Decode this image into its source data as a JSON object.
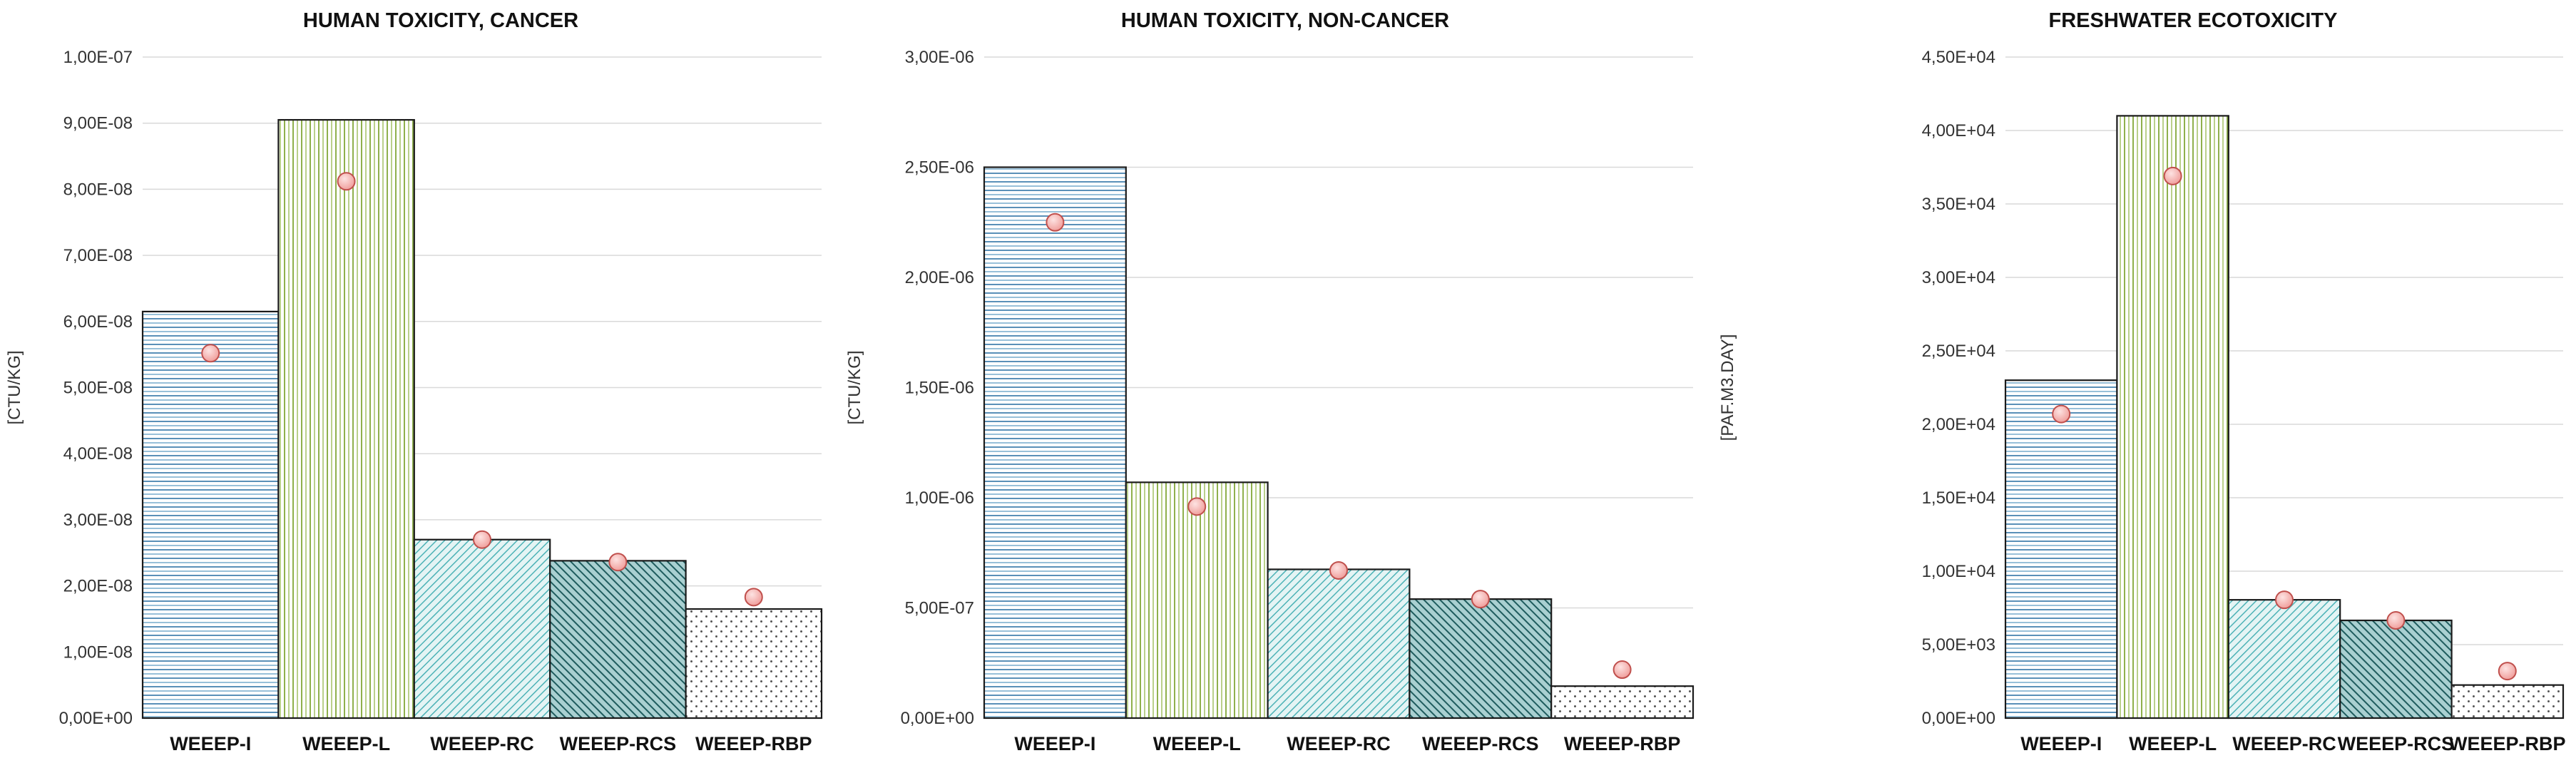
{
  "chart_data": [
    {
      "type": "bar",
      "title": "HUMAN TOXICITY, CANCER",
      "ylabel": "[CTU/KG]",
      "xlabel": "",
      "categories": [
        "WEEEP-I",
        "WEEEP-L",
        "WEEEP-RC",
        "WEEEP-RCS",
        "WEEEP-RBP"
      ],
      "series": [
        {
          "name": "bars",
          "values": [
            6.15e-08,
            9.05e-08,
            2.7e-08,
            2.38e-08,
            1.65e-08
          ]
        },
        {
          "name": "markers",
          "values": [
            5.52e-08,
            8.12e-08,
            2.7e-08,
            2.36e-08,
            1.83e-08
          ]
        }
      ],
      "ylim": [
        0,
        1e-07
      ],
      "yticks": [
        0,
        1e-08,
        2e-08,
        3e-08,
        4e-08,
        5e-08,
        6e-08,
        7e-08,
        8e-08,
        9e-08,
        1e-07
      ],
      "ytick_labels": [
        "0,00E+00",
        "1,00E-08",
        "2,00E-08",
        "3,00E-08",
        "4,00E-08",
        "5,00E-08",
        "6,00E-08",
        "7,00E-08",
        "8,00E-08",
        "9,00E-08",
        "1,00E-07"
      ],
      "grid": true
    },
    {
      "type": "bar",
      "title": "HUMAN TOXICITY, NON-CANCER",
      "ylabel": "[CTU/KG]",
      "xlabel": "",
      "categories": [
        "WEEEP-I",
        "WEEEP-L",
        "WEEEP-RC",
        "WEEEP-RCS",
        "WEEEP-RBP"
      ],
      "series": [
        {
          "name": "bars",
          "values": [
            2.5e-06,
            1.07e-06,
            6.75e-07,
            5.4e-07,
            1.45e-07
          ]
        },
        {
          "name": "markers",
          "values": [
            2.25e-06,
            9.6e-07,
            6.7e-07,
            5.4e-07,
            2.2e-07
          ]
        }
      ],
      "ylim": [
        0,
        3e-06
      ],
      "yticks": [
        0,
        5e-07,
        1e-06,
        1.5e-06,
        2e-06,
        2.5e-06,
        3e-06
      ],
      "ytick_labels": [
        "0,00E+00",
        "5,00E-07",
        "1,00E-06",
        "1,50E-06",
        "2,00E-06",
        "2,50E-06",
        "3,00E-06"
      ],
      "grid": true
    },
    {
      "type": "bar",
      "title": "FRESHWATER  ECOTOXICITY",
      "ylabel": "[PAF.M3.DAY]",
      "xlabel": "",
      "categories": [
        "WEEEP-I",
        "WEEEP-L",
        "WEEEP-RC",
        "WEEEP-RCS",
        "WEEEP-RBP"
      ],
      "series": [
        {
          "name": "bars",
          "values": [
            23000,
            41000,
            8050,
            6650,
            2250
          ]
        },
        {
          "name": "markers",
          "values": [
            20700,
            36900,
            8050,
            6650,
            3200
          ]
        }
      ],
      "ylim": [
        0,
        45000
      ],
      "yticks": [
        0,
        5000,
        10000,
        15000,
        20000,
        25000,
        30000,
        35000,
        40000,
        45000
      ],
      "ytick_labels": [
        "0,00E+00",
        "5,00E+03",
        "1,00E+04",
        "1,50E+04",
        "2,00E+04",
        "2,50E+04",
        "3,00E+04",
        "3,50E+04",
        "4,00E+04",
        "4,50E+04"
      ],
      "grid": true
    }
  ],
  "colors": {
    "hatch_horizontal": "#4f88b0",
    "hatch_vertical": "#8fb04c",
    "hatch_diag_light": "#4cb2b6",
    "hatch_diag_dark": "#1f5c5e",
    "hatch_dots": "#444444",
    "marker_fill": "#f6b3b0",
    "marker_stroke": "#c0504d",
    "grid": "#d9d9d9"
  }
}
